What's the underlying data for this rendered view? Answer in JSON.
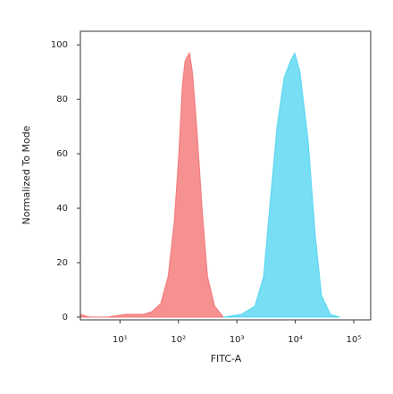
{
  "chart_data": {
    "type": "area",
    "xlabel": "FITC-A",
    "ylabel": "Normalized To Mode",
    "xscale": "log",
    "xlim": [
      2.1,
      195000
    ],
    "ylim": [
      -1,
      105
    ],
    "xticks": [
      {
        "value": 10,
        "label": "10¹"
      },
      {
        "value": 100,
        "label": "10²"
      },
      {
        "value": 1000,
        "label": "10³"
      },
      {
        "value": 10000,
        "label": "10⁴"
      },
      {
        "value": 100000,
        "label": "10⁵"
      }
    ],
    "yticks": [
      0,
      20,
      40,
      60,
      80,
      100
    ],
    "series": [
      {
        "color": "#f47e7e",
        "x": [
          2.1,
          3,
          6.1,
          12.4,
          25,
          35.5,
          50,
          67,
          85,
          102,
          117,
          130,
          145,
          155,
          173,
          205,
          253,
          313,
          416,
          590
        ],
        "values": [
          1,
          0,
          0,
          1,
          1,
          2,
          5,
          15,
          35,
          60,
          85,
          94,
          96,
          97,
          90,
          70,
          40,
          15,
          4,
          0
        ]
      },
      {
        "color": "#5fd8f2",
        "x": [
          590,
          1200,
          2040,
          2880,
          3650,
          4890,
          6470,
          8290,
          9780,
          12000,
          16500,
          21900,
          28000,
          39700,
          57000
        ],
        "values": [
          0,
          1,
          4,
          15,
          40,
          70,
          88,
          94,
          97,
          90,
          65,
          30,
          8,
          1,
          0
        ]
      }
    ]
  }
}
